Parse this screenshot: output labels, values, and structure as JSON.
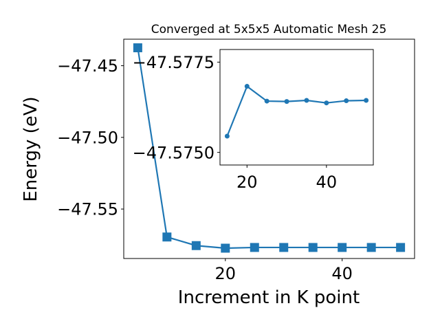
{
  "chart_data": [
    {
      "type": "line",
      "title": "Converged at 5x5x5 Automatic Mesh 25",
      "xlabel": "Increment in K point",
      "ylabel": "Energy (eV)",
      "xlim": [
        2.6,
        52.4
      ],
      "ylim": [
        -47.5845,
        -47.4315
      ],
      "xticks": [
        20,
        40
      ],
      "xtick_labels": [
        "20",
        "40"
      ],
      "yticks": [
        -47.45,
        -47.5,
        -47.55
      ],
      "ytick_labels": [
        "−47.45",
        "−47.50",
        "−47.55"
      ],
      "marker": "square",
      "color": "#1f77b4",
      "grid": false,
      "series": [
        {
          "x": [
            5,
            10,
            15,
            20,
            25,
            30,
            35,
            40,
            45,
            50
          ],
          "y": [
            -47.4375,
            -47.5695,
            -47.5755,
            -47.5773,
            -47.5768,
            -47.5768,
            -47.5768,
            -47.5768,
            -47.5768,
            -47.5768
          ]
        }
      ]
    },
    {
      "type": "line",
      "title": "",
      "xlim": [
        13.2,
        51.8
      ],
      "ylim": [
        -47.57465,
        -47.57785
      ],
      "xticks": [
        20,
        40
      ],
      "xtick_labels": [
        "20",
        "40"
      ],
      "yticks": [
        -47.5775,
        -47.575
      ],
      "ytick_labels": [
        "−47.5775",
        "−47.5750"
      ],
      "marker": "circle",
      "color": "#1f77b4",
      "grid": false,
      "series": [
        {
          "x": [
            15,
            20,
            25,
            30,
            35,
            40,
            45,
            50
          ],
          "y": [
            -47.57545,
            -47.57683,
            -47.57642,
            -47.57641,
            -47.57644,
            -47.57637,
            -47.57643,
            -47.57644
          ]
        }
      ]
    }
  ]
}
